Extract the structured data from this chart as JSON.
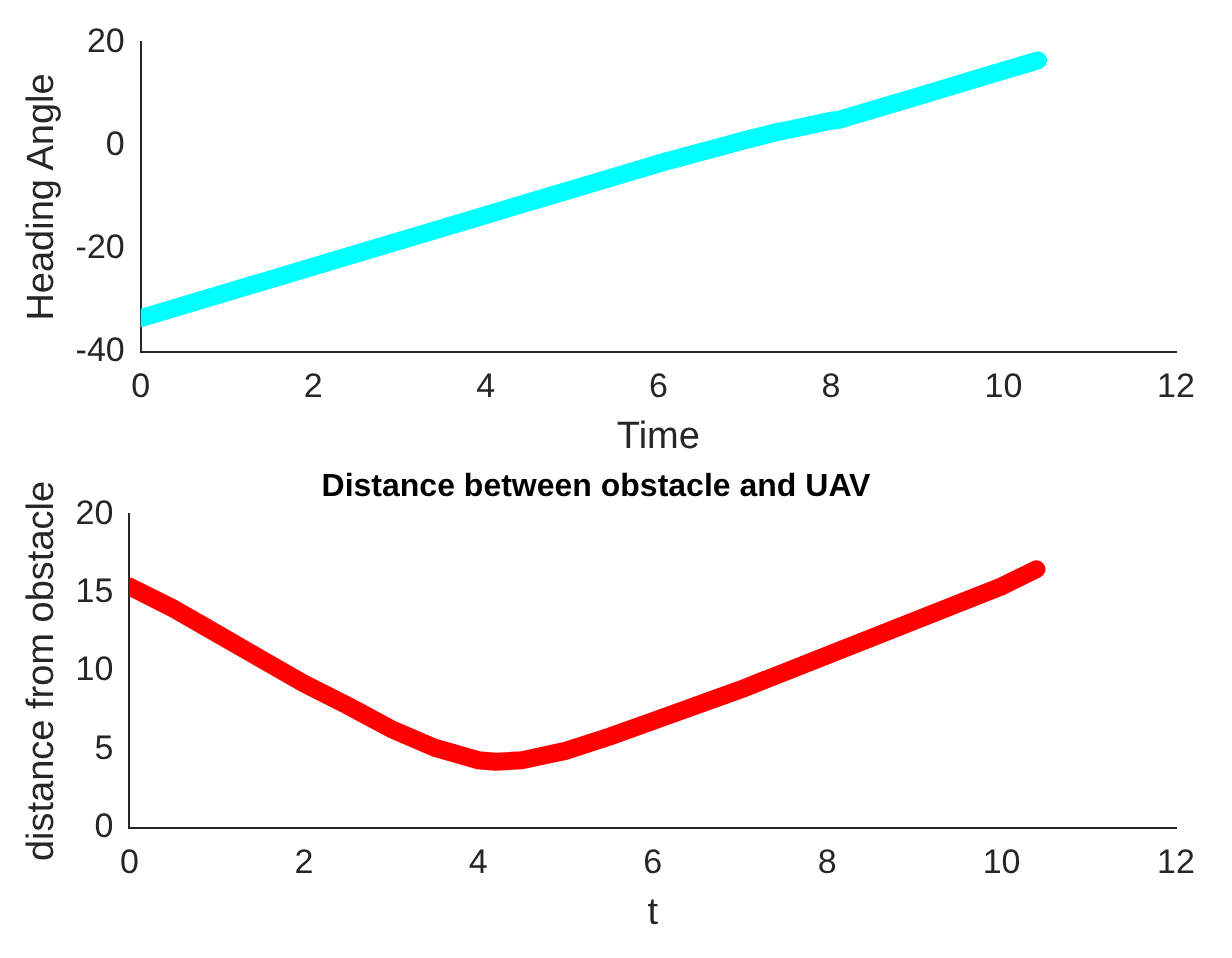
{
  "chart_data": [
    {
      "type": "line",
      "xlabel": "Time",
      "ylabel": "Heading Angle",
      "x": [
        0,
        1,
        2,
        3,
        4,
        5,
        6,
        7,
        7.4,
        7.5,
        8,
        8.1,
        9,
        10,
        10.4
      ],
      "values": [
        -33.5,
        -28.5,
        -23.5,
        -18.5,
        -13.5,
        -8.5,
        -3.5,
        1,
        2.7,
        3,
        4.8,
        5,
        9.5,
        14.5,
        16.5
      ],
      "color": "#00ffff",
      "xlim": [
        0,
        12
      ],
      "xticks": [
        0,
        2,
        4,
        6,
        8,
        10,
        12
      ],
      "ylim": [
        -40,
        20
      ],
      "yticks": [
        -40,
        -20,
        0,
        20
      ],
      "grid": false,
      "legend": false
    },
    {
      "type": "line",
      "title": "Distance between obstacle and UAV",
      "xlabel": "t",
      "ylabel": "distance from obstacle",
      "x": [
        0,
        0.5,
        1,
        1.5,
        2,
        2.5,
        3,
        3.5,
        4,
        4.2,
        4.5,
        5,
        5.5,
        6,
        7,
        8,
        9,
        10,
        10.4
      ],
      "values": [
        15.4,
        14,
        12.4,
        10.8,
        9.2,
        7.8,
        6.3,
        5.1,
        4.3,
        4.2,
        4.3,
        4.9,
        5.8,
        6.8,
        8.8,
        11,
        13.2,
        15.4,
        16.5
      ],
      "color": "#ff0000",
      "xlim": [
        0,
        12
      ],
      "xticks": [
        0,
        2,
        4,
        6,
        8,
        10,
        12
      ],
      "ylim": [
        0,
        20
      ],
      "yticks": [
        0,
        5,
        10,
        15,
        20
      ],
      "grid": false,
      "legend": false
    }
  ]
}
